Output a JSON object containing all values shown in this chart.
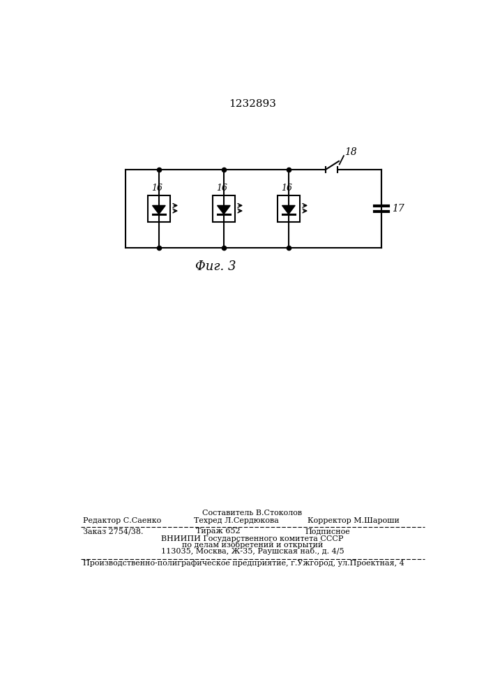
{
  "patent_number": "1232893",
  "fig_label": "Φиг. 3",
  "background_color": "#ffffff",
  "line_color": "#000000",
  "editor_line": "Редактор С.Саенко",
  "composer_line": "Составитель В.Стоколов",
  "techred_line": "Техред Л.Сердюкова",
  "corrector_line": "Корректор М.Шароши",
  "order_line": "Заказ 2754/38.",
  "tirazh_line": "Тираж 652",
  "podpisnoe_line": "Подписное",
  "vniiipi_line": "ВНИИПИ Государственного комитета СССР",
  "dela_line": "по делам изобретений и открытий",
  "address_line": "113035, Москва, Ж-35, Раушская наб., д. 4/5",
  "production_line": "Производственно-полиграфическое предприятие, г.Ужгород, ул.Проектная, 4",
  "label_16": "16",
  "label_17": "17",
  "label_18": "18"
}
